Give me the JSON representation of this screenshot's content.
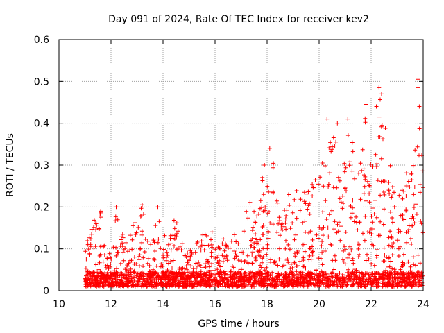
{
  "chart_data": {
    "type": "scatter",
    "title": "Day 091 of 2024, Rate Of TEC Index for receiver kev2",
    "xlabel": "GPS time / hours",
    "ylabel": "ROTI / TECUs",
    "xlim": [
      10,
      24
    ],
    "ylim": [
      0,
      0.6
    ],
    "x_ticks": [
      10,
      12,
      14,
      16,
      18,
      20,
      22,
      24
    ],
    "x_tick_labels": [
      "10",
      "12",
      "14",
      "16",
      "18",
      "20",
      "22",
      "24"
    ],
    "y_ticks": [
      0,
      0.1,
      0.2,
      0.3,
      0.4,
      0.5,
      0.6
    ],
    "y_tick_labels": [
      "0",
      "0.1",
      "0.2",
      "0.3",
      "0.4",
      "0.5",
      "0.6"
    ],
    "grid": true,
    "marker": "+",
    "marker_color": "#ff0000",
    "data_start_hour": 11.0,
    "data_end_hour": 24.0,
    "envelope": [
      {
        "x": 11.0,
        "y": 0.12
      },
      {
        "x": 11.2,
        "y": 0.13
      },
      {
        "x": 11.4,
        "y": 0.18
      },
      {
        "x": 11.6,
        "y": 0.19
      },
      {
        "x": 11.8,
        "y": 0.09
      },
      {
        "x": 12.0,
        "y": 0.1
      },
      {
        "x": 12.2,
        "y": 0.2
      },
      {
        "x": 12.4,
        "y": 0.14
      },
      {
        "x": 12.6,
        "y": 0.13
      },
      {
        "x": 12.8,
        "y": 0.15
      },
      {
        "x": 13.0,
        "y": 0.19
      },
      {
        "x": 13.2,
        "y": 0.2
      },
      {
        "x": 13.4,
        "y": 0.17
      },
      {
        "x": 13.6,
        "y": 0.12
      },
      {
        "x": 13.8,
        "y": 0.2
      },
      {
        "x": 14.0,
        "y": 0.18
      },
      {
        "x": 14.2,
        "y": 0.12
      },
      {
        "x": 14.4,
        "y": 0.17
      },
      {
        "x": 14.6,
        "y": 0.17
      },
      {
        "x": 14.8,
        "y": 0.1
      },
      {
        "x": 15.0,
        "y": 0.1
      },
      {
        "x": 15.2,
        "y": 0.09
      },
      {
        "x": 15.4,
        "y": 0.14
      },
      {
        "x": 15.6,
        "y": 0.14
      },
      {
        "x": 15.8,
        "y": 0.15
      },
      {
        "x": 16.0,
        "y": 0.15
      },
      {
        "x": 16.2,
        "y": 0.14
      },
      {
        "x": 16.4,
        "y": 0.13
      },
      {
        "x": 16.6,
        "y": 0.13
      },
      {
        "x": 16.8,
        "y": 0.14
      },
      {
        "x": 17.0,
        "y": 0.12
      },
      {
        "x": 17.2,
        "y": 0.24
      },
      {
        "x": 17.4,
        "y": 0.21
      },
      {
        "x": 17.6,
        "y": 0.18
      },
      {
        "x": 17.8,
        "y": 0.27
      },
      {
        "x": 18.0,
        "y": 0.3
      },
      {
        "x": 18.2,
        "y": 0.34
      },
      {
        "x": 18.4,
        "y": 0.22
      },
      {
        "x": 18.6,
        "y": 0.2
      },
      {
        "x": 18.8,
        "y": 0.25
      },
      {
        "x": 19.0,
        "y": 0.22
      },
      {
        "x": 19.2,
        "y": 0.26
      },
      {
        "x": 19.4,
        "y": 0.24
      },
      {
        "x": 19.6,
        "y": 0.29
      },
      {
        "x": 19.8,
        "y": 0.28
      },
      {
        "x": 20.0,
        "y": 0.28
      },
      {
        "x": 20.2,
        "y": 0.32
      },
      {
        "x": 20.4,
        "y": 0.35
      },
      {
        "x": 20.6,
        "y": 0.4
      },
      {
        "x": 20.8,
        "y": 0.34
      },
      {
        "x": 21.0,
        "y": 0.38
      },
      {
        "x": 21.2,
        "y": 0.41
      },
      {
        "x": 21.4,
        "y": 0.33
      },
      {
        "x": 21.6,
        "y": 0.32
      },
      {
        "x": 21.8,
        "y": 0.44
      },
      {
        "x": 22.0,
        "y": 0.3
      },
      {
        "x": 22.2,
        "y": 0.43
      },
      {
        "x": 22.4,
        "y": 0.48
      },
      {
        "x": 22.6,
        "y": 0.37
      },
      {
        "x": 22.8,
        "y": 0.3
      },
      {
        "x": 23.0,
        "y": 0.28
      },
      {
        "x": 23.2,
        "y": 0.3
      },
      {
        "x": 23.4,
        "y": 0.28
      },
      {
        "x": 23.6,
        "y": 0.3
      },
      {
        "x": 23.8,
        "y": 0.5
      },
      {
        "x": 24.0,
        "y": 0.28
      }
    ],
    "spikes": [
      {
        "x": 11.6,
        "y": 0.19
      },
      {
        "x": 12.2,
        "y": 0.2
      },
      {
        "x": 13.2,
        "y": 0.205
      },
      {
        "x": 13.8,
        "y": 0.2
      },
      {
        "x": 17.9,
        "y": 0.3
      },
      {
        "x": 18.1,
        "y": 0.34
      },
      {
        "x": 20.3,
        "y": 0.41
      },
      {
        "x": 20.7,
        "y": 0.4
      },
      {
        "x": 21.1,
        "y": 0.41
      },
      {
        "x": 21.8,
        "y": 0.445
      },
      {
        "x": 22.2,
        "y": 0.44
      },
      {
        "x": 22.3,
        "y": 0.485
      },
      {
        "x": 22.4,
        "y": 0.47
      },
      {
        "x": 23.8,
        "y": 0.505
      },
      {
        "x": 23.8,
        "y": 0.485
      },
      {
        "x": 23.85,
        "y": 0.44
      }
    ]
  }
}
